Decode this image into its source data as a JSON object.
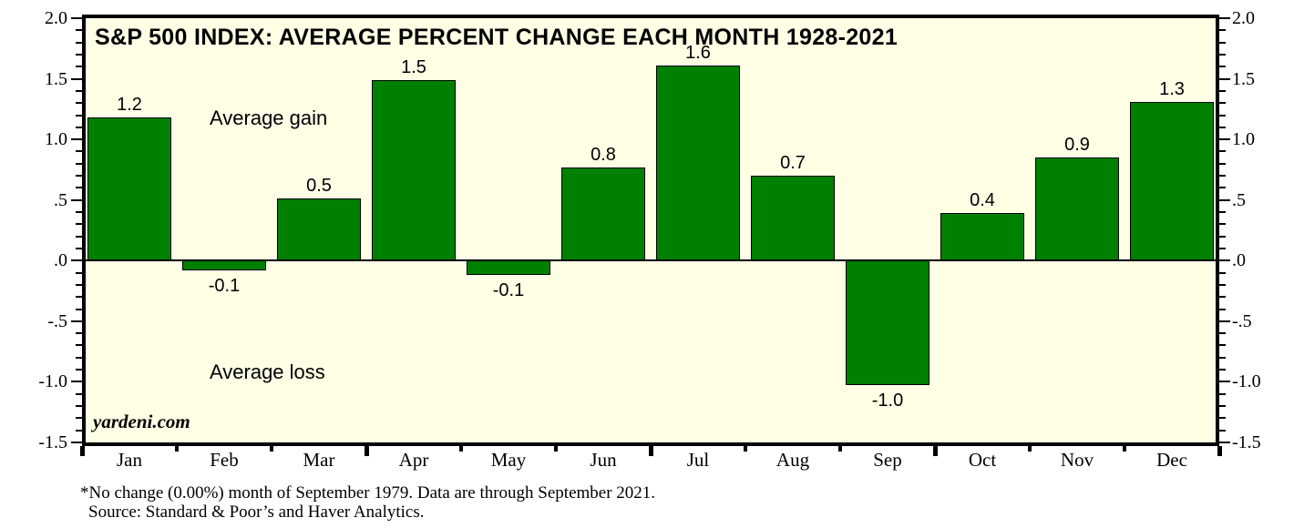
{
  "chart_data": {
    "type": "bar",
    "title": "S&P 500 INDEX: AVERAGE PERCENT CHANGE EACH MONTH 1928-2021",
    "categories": [
      "Jan",
      "Feb",
      "Mar",
      "Apr",
      "May",
      "Jun",
      "Jul",
      "Aug",
      "Sep",
      "Oct",
      "Nov",
      "Dec"
    ],
    "values": [
      1.2,
      -0.1,
      0.5,
      1.5,
      -0.1,
      0.8,
      1.6,
      0.7,
      -1.0,
      0.4,
      0.9,
      1.3
    ],
    "value_labels": [
      "1.2",
      "-0.1",
      "0.5",
      "1.5",
      "-0.1",
      "0.8",
      "1.6",
      "0.7",
      "-1.0",
      "0.4",
      "0.9",
      "1.3"
    ],
    "values_precise_est": [
      1.18,
      -0.08,
      0.51,
      1.49,
      -0.12,
      0.77,
      1.61,
      0.7,
      -1.03,
      0.39,
      0.85,
      1.31
    ],
    "xlabel": "",
    "ylabel": "",
    "ylim": [
      -1.5,
      2.0
    ],
    "y_major_ticks": [
      2.0,
      1.5,
      1.0,
      0.5,
      0.0,
      -0.5,
      -1.0,
      -1.5
    ],
    "y_major_tick_labels": [
      "2.0",
      "1.5",
      "1.0",
      ".5",
      ".0",
      "-.5",
      "-1.0",
      "-1.5"
    ],
    "y_minor_tick_step": 0.1,
    "grid": false,
    "legend": null,
    "bar_color": "#008000",
    "plot_bg_color": "#FFFFE6",
    "annotations": {
      "gain": "Average gain",
      "loss": "Average loss"
    },
    "watermark": "yardeni.com"
  },
  "footnotes": {
    "line1": "*No change (0.00%) month of September 1979. Data are through September 2021.",
    "line2": "Source: Standard & Poor’s and Haver Analytics."
  }
}
